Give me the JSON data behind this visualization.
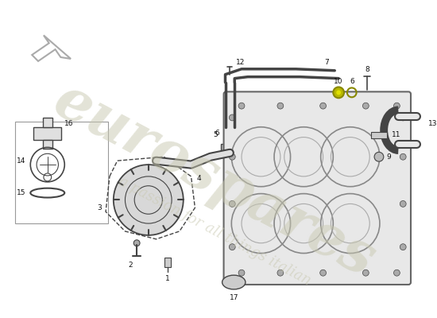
{
  "background_color": "#ffffff",
  "watermark_text": "eurospares",
  "watermark_subtext": "a passion for all things italian",
  "watermark_color": "#c8c8b0",
  "watermark_alpha": 0.5,
  "line_color": "#444444",
  "label_color": "#111111",
  "label_fontsize": 6.5,
  "figsize": [
    5.5,
    4.0
  ],
  "dpi": 100,
  "engine_fill": "#e8e8e8",
  "pump_fill": "#dddddd",
  "part_line": "#555555"
}
